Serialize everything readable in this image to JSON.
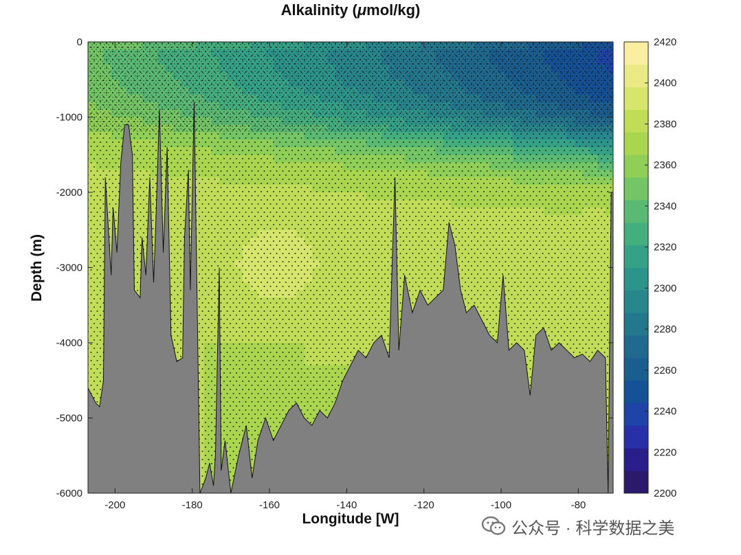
{
  "chart_data": {
    "type": "heatmap",
    "title": "Alkalinity (",
    "title_symbol": "μ",
    "title_suffix": "mol/kg)",
    "xlabel": "Longitude [W]",
    "ylabel": "Depth (m)",
    "xlim": [
      -207,
      -71
    ],
    "ylim": [
      -6000,
      0
    ],
    "x_ticks": [
      -200,
      -180,
      -160,
      -140,
      -120,
      -100,
      -80
    ],
    "y_ticks": [
      0,
      -1000,
      -2000,
      -3000,
      -4000,
      -5000,
      -6000
    ],
    "colorbar": {
      "range": [
        2200,
        2420
      ],
      "ticks": [
        2200,
        2220,
        2240,
        2260,
        2280,
        2300,
        2320,
        2340,
        2360,
        2380,
        2400,
        2420
      ],
      "levels": [
        "#2b1a6b",
        "#2a1d8c",
        "#2730a6",
        "#1d44a6",
        "#155196",
        "#1a5d8f",
        "#1f6a8e",
        "#24788e",
        "#28868d",
        "#2d948b",
        "#35a287",
        "#44ae7e",
        "#5aba74",
        "#74c565",
        "#8fcf57",
        "#aad64f",
        "#c1dd58",
        "#d6e56c",
        "#e9ea86",
        "#fbeea0"
      ]
    },
    "bathymetry_color": "#808080",
    "bathymetry": [
      [
        -207,
        -4600
      ],
      [
        -205,
        -4800
      ],
      [
        -204,
        -4850
      ],
      [
        -203,
        -4500
      ],
      [
        -202.5,
        -1800
      ],
      [
        -201,
        -3100
      ],
      [
        -200.5,
        -2200
      ],
      [
        -199.5,
        -2800
      ],
      [
        -198.5,
        -1600
      ],
      [
        -197.5,
        -1100
      ],
      [
        -196.5,
        -1100
      ],
      [
        -195.5,
        -1500
      ],
      [
        -195,
        -3300
      ],
      [
        -193.5,
        -3400
      ],
      [
        -193,
        -2600
      ],
      [
        -192,
        -3100
      ],
      [
        -191,
        -1800
      ],
      [
        -190,
        -3200
      ],
      [
        -189.5,
        -2500
      ],
      [
        -188.5,
        -900
      ],
      [
        -187.5,
        -2800
      ],
      [
        -186.5,
        -1400
      ],
      [
        -185.5,
        -3900
      ],
      [
        -184,
        -4250
      ],
      [
        -182.5,
        -4200
      ],
      [
        -182,
        -2600
      ],
      [
        -181,
        -1700
      ],
      [
        -180.5,
        -3300
      ],
      [
        -179.5,
        -800
      ],
      [
        -178,
        -6000
      ],
      [
        -176.5,
        -5800
      ],
      [
        -175.5,
        -5600
      ],
      [
        -174.5,
        -5900
      ],
      [
        -174,
        -5500
      ],
      [
        -173,
        -3000
      ],
      [
        -172.5,
        -5700
      ],
      [
        -171.5,
        -5300
      ],
      [
        -170,
        -6000
      ],
      [
        -168,
        -5500
      ],
      [
        -166,
        -5100
      ],
      [
        -164.5,
        -5800
      ],
      [
        -163,
        -5300
      ],
      [
        -161,
        -5000
      ],
      [
        -159,
        -5300
      ],
      [
        -157,
        -5100
      ],
      [
        -155,
        -4900
      ],
      [
        -153,
        -4800
      ],
      [
        -151,
        -5000
      ],
      [
        -149,
        -5100
      ],
      [
        -147,
        -4900
      ],
      [
        -145,
        -5000
      ],
      [
        -143,
        -4800
      ],
      [
        -141,
        -4500
      ],
      [
        -139,
        -4300
      ],
      [
        -137,
        -4100
      ],
      [
        -135,
        -4200
      ],
      [
        -133,
        -4000
      ],
      [
        -131,
        -3900
      ],
      [
        -129,
        -4200
      ],
      [
        -127.5,
        -1800
      ],
      [
        -126.5,
        -4100
      ],
      [
        -125,
        -3100
      ],
      [
        -123,
        -3600
      ],
      [
        -121,
        -3300
      ],
      [
        -119,
        -3500
      ],
      [
        -117,
        -3400
      ],
      [
        -115,
        -3300
      ],
      [
        -113.5,
        -2400
      ],
      [
        -112,
        -2700
      ],
      [
        -110.5,
        -3300
      ],
      [
        -109,
        -3600
      ],
      [
        -107,
        -3500
      ],
      [
        -105,
        -3700
      ],
      [
        -103,
        -3900
      ],
      [
        -101,
        -4000
      ],
      [
        -99.5,
        -3100
      ],
      [
        -98,
        -4100
      ],
      [
        -96,
        -4000
      ],
      [
        -94,
        -4100
      ],
      [
        -92.5,
        -4700
      ],
      [
        -91,
        -3900
      ],
      [
        -89,
        -3800
      ],
      [
        -87,
        -4100
      ],
      [
        -85,
        -4000
      ],
      [
        -83,
        -4100
      ],
      [
        -81,
        -4200
      ],
      [
        -79,
        -4150
      ],
      [
        -77,
        -4250
      ],
      [
        -75,
        -4100
      ],
      [
        -73,
        -4200
      ],
      [
        -72.3,
        -6000
      ],
      [
        -71.5,
        -2000
      ],
      [
        -71,
        -2000
      ]
    ]
  },
  "watermark": {
    "icon": "wechat-icon",
    "text": "公众号 · 科学数据之美"
  }
}
